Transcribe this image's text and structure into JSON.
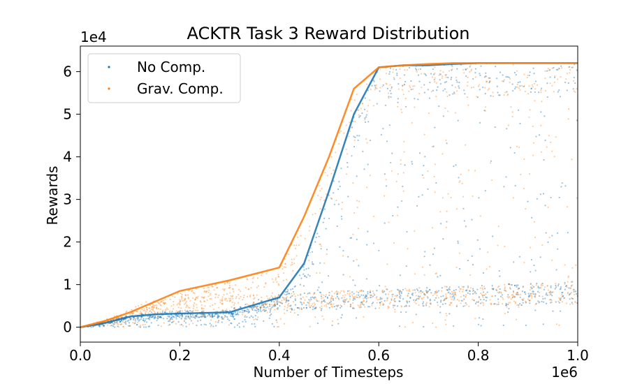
{
  "chart_data": {
    "type": "scatter",
    "title": "ACKTR Task 3 Reward Distribution",
    "xlabel": "Number of Timesteps",
    "ylabel": "Rewards",
    "x_offset_label": "1e6",
    "y_offset_label": "1e4",
    "xlim": [
      0,
      1.0
    ],
    "ylim": [
      -0.35,
      6.6
    ],
    "x_ticks": [
      0.0,
      0.2,
      0.4,
      0.6,
      0.8,
      1.0
    ],
    "x_tick_labels": [
      "0.0",
      "0.2",
      "0.4",
      "0.6",
      "0.8",
      "1.0"
    ],
    "y_ticks": [
      0,
      1,
      2,
      3,
      4,
      5,
      6
    ],
    "y_tick_labels": [
      "0",
      "1",
      "2",
      "3",
      "4",
      "5",
      "6"
    ],
    "legend_position": "top-left",
    "series": [
      {
        "name": "No Comp.",
        "color": "#1f77b4",
        "x": [
          0.0,
          0.05,
          0.1,
          0.15,
          0.2,
          0.3,
          0.4,
          0.45,
          0.5,
          0.55,
          0.6,
          0.65,
          0.7,
          0.75,
          0.8,
          0.85,
          0.9,
          0.95,
          1.0
        ],
        "y": [
          0.0,
          0.1,
          0.25,
          0.3,
          0.32,
          0.35,
          0.7,
          1.5,
          3.2,
          5.0,
          6.1,
          6.15,
          6.15,
          6.18,
          6.2,
          6.2,
          6.2,
          6.2,
          6.2
        ]
      },
      {
        "name": "Grav. Comp.",
        "color": "#ff7f0e",
        "x": [
          0.0,
          0.05,
          0.1,
          0.15,
          0.2,
          0.3,
          0.4,
          0.45,
          0.5,
          0.55,
          0.6,
          0.65,
          0.7,
          0.75,
          0.8,
          0.85,
          0.9,
          0.95,
          1.0
        ],
        "y": [
          0.0,
          0.15,
          0.35,
          0.6,
          0.85,
          1.1,
          1.4,
          2.6,
          4.0,
          5.6,
          6.1,
          6.15,
          6.18,
          6.2,
          6.2,
          6.2,
          6.2,
          6.2,
          6.2
        ]
      }
    ]
  }
}
